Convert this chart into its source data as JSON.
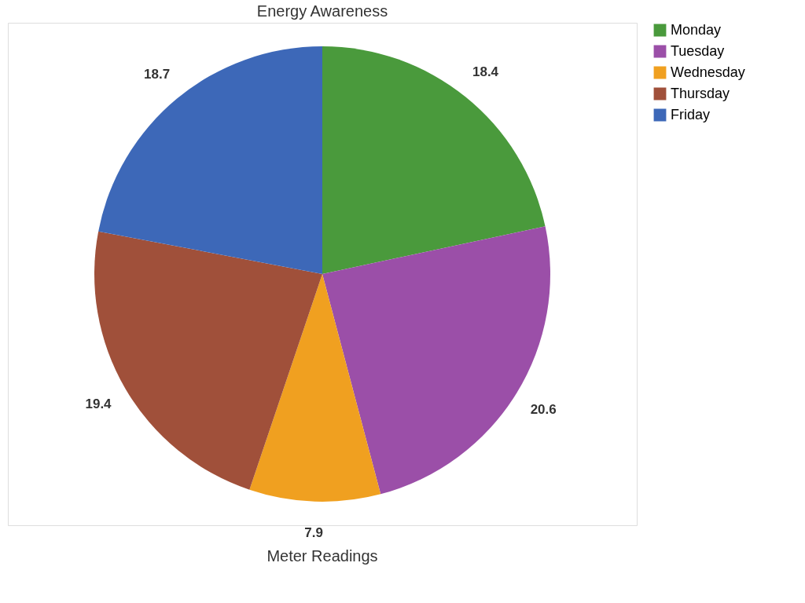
{
  "chart_data": {
    "type": "pie",
    "title": "Energy Awareness",
    "xlabel": "Meter Readings",
    "categories": [
      "Monday",
      "Tuesday",
      "Wednesday",
      "Thursday",
      "Friday"
    ],
    "values": [
      18.4,
      20.6,
      7.9,
      19.4,
      18.7
    ],
    "colors": [
      "#4a9a3c",
      "#9b4fa8",
      "#f0a020",
      "#a0503a",
      "#3d68b8"
    ],
    "data_labels": true,
    "legend": "right"
  }
}
